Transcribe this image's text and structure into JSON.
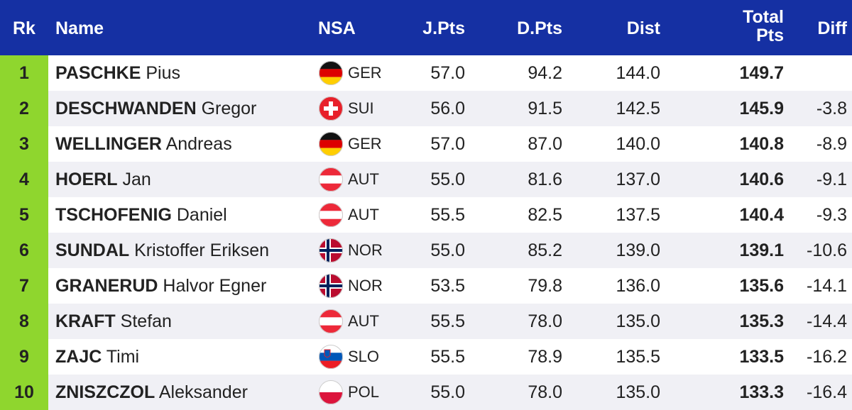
{
  "table": {
    "header": [
      "Rk",
      "Name",
      "NSA",
      "J.Pts",
      "D.Pts",
      "Dist",
      "Total Pts",
      "Diff"
    ],
    "rows": [
      {
        "rank": "1",
        "surname": "PASCHKE",
        "given": "Pius",
        "nsa": "GER",
        "jpts": "57.0",
        "dpts": "94.2",
        "dist": "144.0",
        "total": "149.7"
      },
      {
        "rank": "2",
        "surname": "DESCHWANDEN",
        "given": "Gregor",
        "nsa": "SUI",
        "jpts": "56.0",
        "dpts": "91.5",
        "dist": "142.5",
        "total": "145.9",
        "diff": "-3.8"
      },
      {
        "rank": "3",
        "surname": "WELLINGER",
        "given": "Andreas",
        "nsa": "GER",
        "jpts": "57.0",
        "dpts": "87.0",
        "dist": "140.0",
        "total": "140.8",
        "diff": "-8.9"
      },
      {
        "rank": "4",
        "surname": "HOERL",
        "given": "Jan",
        "nsa": "AUT",
        "jpts": "55.0",
        "dpts": "81.6",
        "dist": "137.0",
        "total": "140.6",
        "diff": "-9.1"
      },
      {
        "rank": "5",
        "surname": "TSCHOFENIG",
        "given": "Daniel",
        "nsa": "AUT",
        "jpts": "55.5",
        "dpts": "82.5",
        "dist": "137.5",
        "total": "140.4",
        "diff": "-9.3"
      },
      {
        "rank": "6",
        "surname": "SUNDAL",
        "given": "Kristoffer Eriksen",
        "nsa": "NOR",
        "jpts": "55.0",
        "dpts": "85.2",
        "dist": "139.0",
        "total": "139.1",
        "diff": "-10.6"
      },
      {
        "rank": "7",
        "surname": "GRANERUD",
        "given": "Halvor Egner",
        "nsa": "NOR",
        "jpts": "53.5",
        "dpts": "79.8",
        "dist": "136.0",
        "total": "135.6",
        "diff": "-14.1"
      },
      {
        "rank": "8",
        "surname": "KRAFT",
        "given": "Stefan",
        "nsa": "AUT",
        "jpts": "55.5",
        "dpts": "78.0",
        "dist": "135.0",
        "total": "135.3",
        "diff": "-14.4"
      },
      {
        "rank": "9",
        "surname": "ZAJC",
        "given": "Timi",
        "nsa": "SLO",
        "jpts": "55.5",
        "dpts": "78.9",
        "dist": "135.5",
        "total": "133.5",
        "diff": "-16.2"
      },
      {
        "rank": "10",
        "surname": "ZNISZCZOL",
        "given": "Aleksander",
        "nsa": "POL",
        "jpts": "55.0",
        "dpts": "78.0",
        "dist": "135.0",
        "total": "133.3",
        "diff": "-16.4"
      }
    ]
  }
}
